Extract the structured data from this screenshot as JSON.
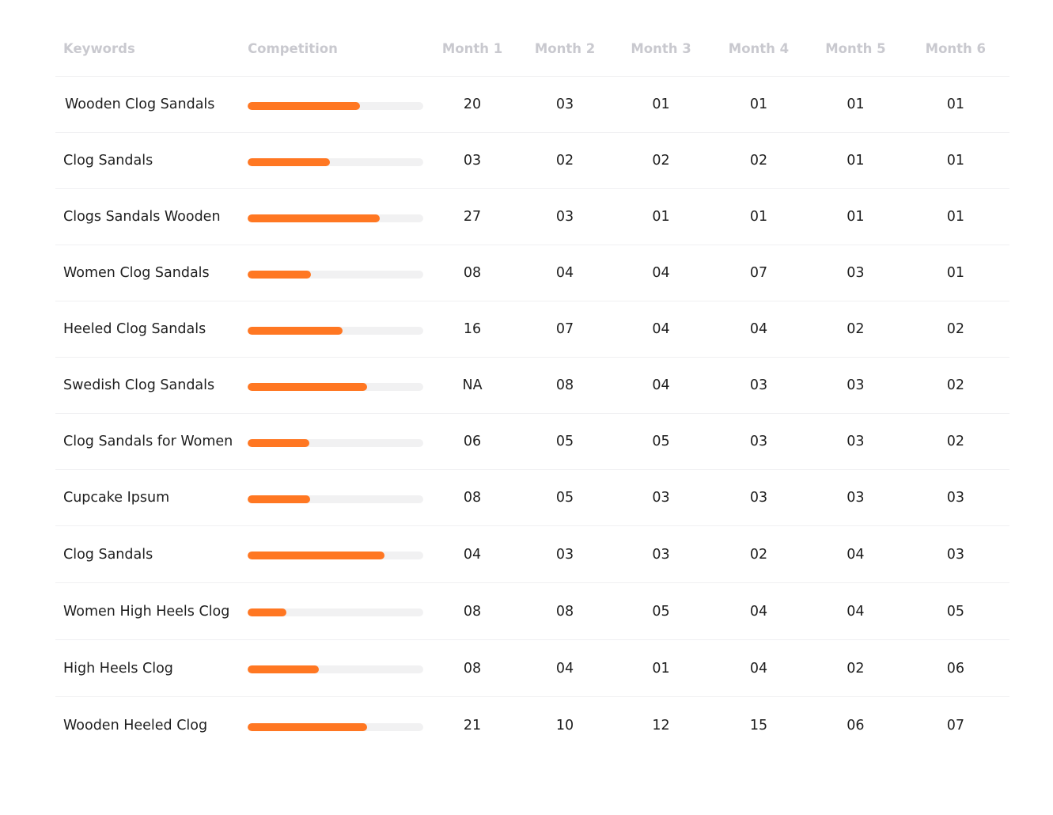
{
  "header": {
    "keywords": "Keywords",
    "competition": "Competition",
    "months": [
      "Month 1",
      "Month 2",
      "Month 3",
      "Month 4",
      "Month 5",
      "Month 6"
    ]
  },
  "colors": {
    "bar_fill": "#ff7722",
    "bar_track": "#f1f1f2",
    "header_text": "#c9c9cf"
  },
  "rows": [
    {
      "keyword": "Wooden Clog Sandals",
      "competition": 0.64,
      "months": [
        "20",
        "03",
        "01",
        "01",
        "01",
        "01"
      ]
    },
    {
      "keyword": "Clog Sandals",
      "competition": 0.47,
      "months": [
        "03",
        "02",
        "02",
        "02",
        "01",
        "01"
      ]
    },
    {
      "keyword": "Clogs Sandals Wooden",
      "competition": 0.75,
      "months": [
        "27",
        "03",
        "01",
        "01",
        "01",
        "01"
      ]
    },
    {
      "keyword": "Women Clog Sandals",
      "competition": 0.36,
      "months": [
        "08",
        "04",
        "04",
        "07",
        "03",
        "01"
      ]
    },
    {
      "keyword": "Heeled Clog Sandals",
      "competition": 0.54,
      "months": [
        "16",
        "07",
        "04",
        "04",
        "02",
        "02"
      ]
    },
    {
      "keyword": "Swedish Clog Sandals",
      "competition": 0.68,
      "months": [
        "NA",
        "08",
        "04",
        "03",
        "03",
        "02"
      ]
    },
    {
      "keyword": "Clog Sandals for Women",
      "competition": 0.35,
      "months": [
        "06",
        "05",
        "05",
        "03",
        "03",
        "02"
      ]
    },
    {
      "keyword": "Cupcake Ipsum",
      "competition": 0.355,
      "months": [
        "08",
        "05",
        "03",
        "03",
        "03",
        "03"
      ]
    },
    {
      "keyword": "Clog Sandals",
      "competition": 0.78,
      "months": [
        "04",
        "03",
        "03",
        "02",
        "04",
        "03"
      ]
    },
    {
      "keyword": "Women High Heels Clog",
      "competition": 0.22,
      "months": [
        "08",
        "08",
        "05",
        "04",
        "04",
        "05"
      ]
    },
    {
      "keyword": "High Heels Clog",
      "competition": 0.405,
      "months": [
        "08",
        "04",
        "01",
        "04",
        "02",
        "06"
      ]
    },
    {
      "keyword": "Wooden Heeled Clog",
      "competition": 0.68,
      "months": [
        "21",
        "10",
        "12",
        "15",
        "06",
        "07"
      ]
    }
  ]
}
